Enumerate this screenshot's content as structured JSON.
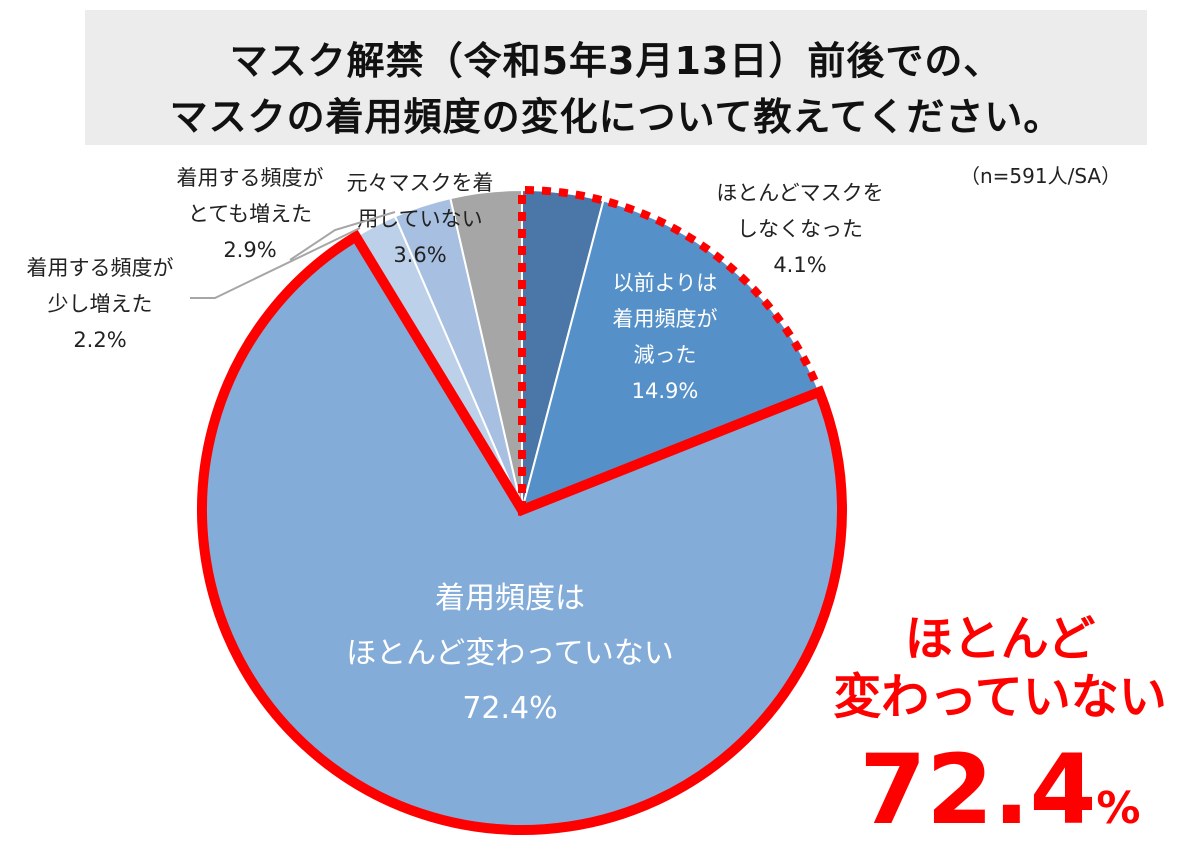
{
  "title": {
    "line1": "マスク解禁（令和5年3月13日）前後での、",
    "line2": "マスクの着用頻度の変化について教えてください。"
  },
  "note": "（n=591人/SA）",
  "callout": {
    "line1": "ほとんど",
    "line2": "変わっていない",
    "value": "72.4",
    "unit": "%"
  },
  "colors": {
    "highlight": "#ff0000",
    "title_bg": "#ececec"
  },
  "chart_data": {
    "type": "pie",
    "start": "12 o'clock, clockwise",
    "slices": [
      {
        "label_lines": [
          "ほとんどマスクを",
          "しなくなった"
        ],
        "value": 4.1,
        "value_label": "4.1%",
        "color": "#4a77a8",
        "label_pos": "outside"
      },
      {
        "label_lines": [
          "以前よりは",
          "着用頻度が",
          "減った"
        ],
        "value": 14.9,
        "value_label": "14.9%",
        "color": "#5591c8",
        "label_pos": "inside"
      },
      {
        "label_lines": [
          "着用頻度は",
          "ほとんど変わっていない"
        ],
        "value": 72.4,
        "value_label": "72.4%",
        "color": "#83acd9",
        "label_pos": "inside"
      },
      {
        "label_lines": [
          "着用する頻度が",
          "少し増えた"
        ],
        "value": 2.2,
        "value_label": "2.2%",
        "color": "#bcd0ea",
        "label_pos": "outside"
      },
      {
        "label_lines": [
          "着用する頻度が",
          "とても増えた"
        ],
        "value": 2.9,
        "value_label": "2.9%",
        "color": "#a7bfe0",
        "label_pos": "outside"
      },
      {
        "label_lines": [
          "元々マスクを着",
          "用していない"
        ],
        "value": 3.6,
        "value_label": "3.6%",
        "color": "#a6a6a6",
        "label_pos": "outside"
      }
    ]
  }
}
